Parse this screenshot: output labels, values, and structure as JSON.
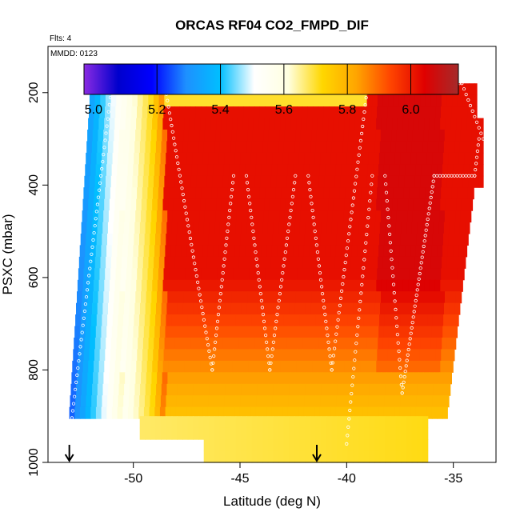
{
  "chart_data": {
    "type": "heatmap",
    "title": "ORCAS RF04 CO2_FMPD_DIF",
    "annotation_top": "Flts: 4",
    "annotation_box": "MMDD: 0123",
    "xlabel": "Latitude (deg N)",
    "ylabel": "PSXC (mbar)",
    "xlim": [
      -54.0,
      -33.0
    ],
    "ylim": [
      1000,
      100
    ],
    "x_ticks": [
      -50,
      -45,
      -40,
      -35
    ],
    "x_tick_labels": [
      "-50",
      "-45",
      "-40",
      "-35"
    ],
    "y_ticks": [
      200,
      400,
      600,
      800,
      1000
    ],
    "y_tick_labels": [
      "200",
      "400",
      "600",
      "800",
      "1000"
    ],
    "colorbar": {
      "range": [
        4.97,
        6.15
      ],
      "ticks": [
        5.0,
        5.2,
        5.4,
        5.6,
        5.8,
        6.0
      ],
      "tick_labels": [
        "5.0",
        "5.2",
        "5.4",
        "5.6",
        "5.8",
        "6.0"
      ],
      "colors": [
        "#8a2be2",
        "#0000cd",
        "#0000ff",
        "#1e90ff",
        "#00bfff",
        "#ffffff",
        "#ffffe0",
        "#ffd700",
        "#ffa500",
        "#ff4500",
        "#e00000",
        "#a52a2a"
      ]
    },
    "arrow_markers_lat": [
      -53.0,
      -41.4
    ],
    "grid": false,
    "legend": "colorbar-top"
  }
}
